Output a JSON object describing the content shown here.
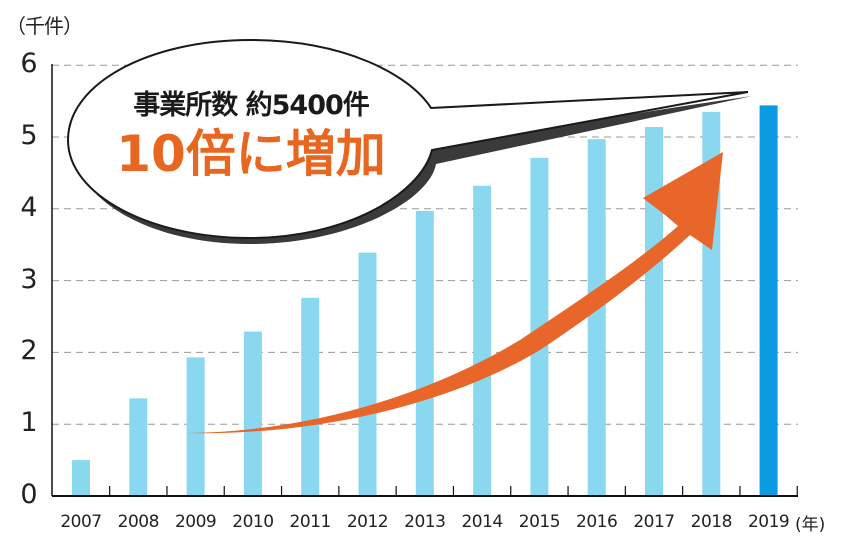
{
  "chart_data": {
    "type": "bar",
    "title": "",
    "xlabel": "(年)",
    "ylabel": "(千件)",
    "ylim": [
      0,
      6
    ],
    "yticks": [
      "0",
      "1",
      "2",
      "3",
      "4",
      "5",
      "6"
    ],
    "grid": true,
    "categories": [
      "2007",
      "2008",
      "2009",
      "2010",
      "2011",
      "2012",
      "2013",
      "2014",
      "2015",
      "2016",
      "2017",
      "2018",
      "2019"
    ],
    "values": [
      0.5,
      1.36,
      1.93,
      2.29,
      2.76,
      3.39,
      3.97,
      4.32,
      4.71,
      4.97,
      5.14,
      5.35,
      5.44
    ],
    "highlight": {
      "category": "2019",
      "color": "#0a9be0"
    },
    "bar_color": "#8ad8ef",
    "annotations": [
      {
        "type": "speech-bubble",
        "line1": "事業所数 約5400件",
        "line2": "10倍に増加",
        "line2_color": "#e8661f"
      },
      {
        "type": "arrow",
        "color": "#e8662a",
        "from": "2009",
        "to": "2018",
        "meaning": "increase"
      }
    ]
  },
  "axis": {
    "y_unit": "（千件）",
    "x_unit": "(年)"
  },
  "callout": {
    "line1": "事業所数 約5400件",
    "line2": "10倍に増加"
  },
  "colors": {
    "bar": "#8ad8ef",
    "highlight_bar": "#0a9be0",
    "arrow": "#e8662a",
    "accent_text": "#e8661f",
    "grid": "#999999"
  }
}
